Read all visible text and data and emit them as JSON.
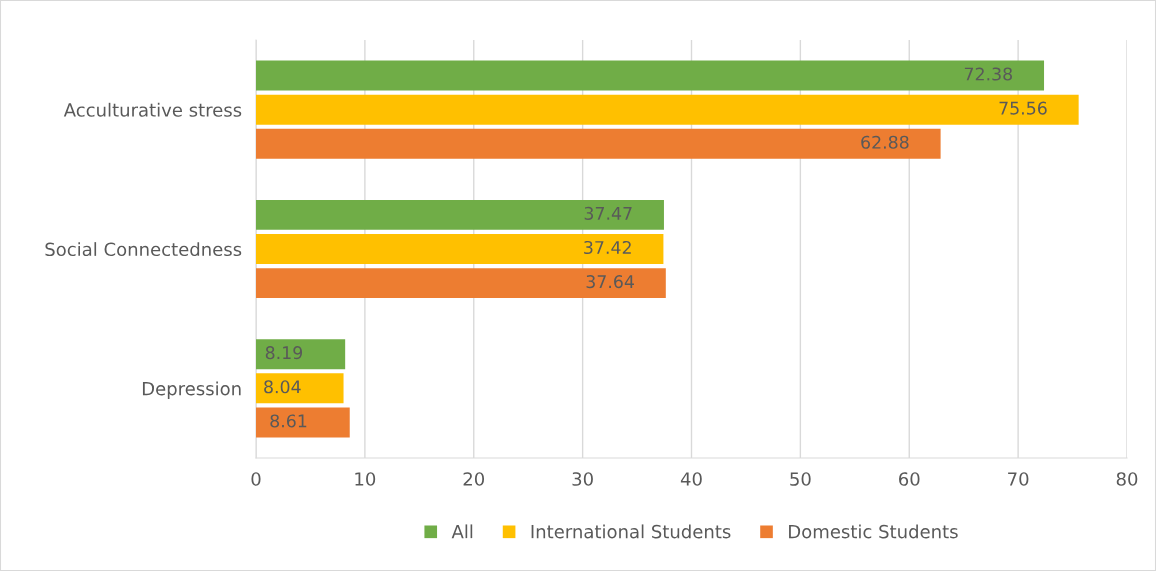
{
  "chart_data": {
    "type": "bar",
    "orientation": "horizontal",
    "categories": [
      "Acculturative stress",
      "Social Connectedness",
      "Depression"
    ],
    "series": [
      {
        "name": "All",
        "color": "#70ad47",
        "values": [
          72.38,
          37.47,
          8.19
        ]
      },
      {
        "name": "International Students",
        "color": "#ffc000",
        "values": [
          75.56,
          37.42,
          8.04
        ]
      },
      {
        "name": "Domestic Students",
        "color": "#ed7d31",
        "values": [
          62.88,
          37.64,
          8.61
        ]
      }
    ],
    "xlim": [
      0,
      80
    ],
    "xticks": [
      0,
      10,
      20,
      30,
      40,
      50,
      60,
      70,
      80
    ],
    "grid": "x",
    "legend": "bottom",
    "data_labels": true
  }
}
